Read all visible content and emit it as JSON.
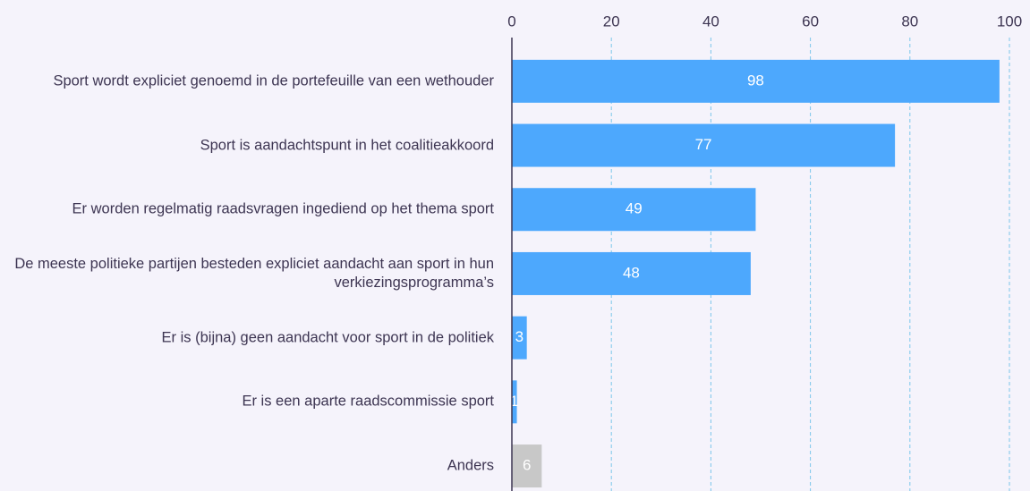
{
  "chart_data": {
    "type": "barh",
    "categories": [
      "Sport wordt expliciet genoemd in de portefeuille van een wethouder",
      "Sport is aandachtspunt in het coalitieakkoord",
      "Er worden regelmatig raadsvragen ingediend op het thema sport",
      "De meeste politieke partijen besteden expliciet aandacht aan sport in hun verkiezingsprogramma’s",
      "Er is (bijna) geen aandacht voor sport in de politiek",
      "Er is een aparte raadscommissie sport",
      "Anders"
    ],
    "values": [
      98,
      77,
      49,
      48,
      3,
      1,
      6
    ],
    "colors": [
      "#4da8fd",
      "#4da8fd",
      "#4da8fd",
      "#4da8fd",
      "#4da8fd",
      "#4da8fd",
      "#c8c8c8"
    ],
    "xlim": [
      0,
      100
    ],
    "xticks": [
      0,
      20,
      40,
      60,
      80,
      100
    ],
    "grid": true
  }
}
